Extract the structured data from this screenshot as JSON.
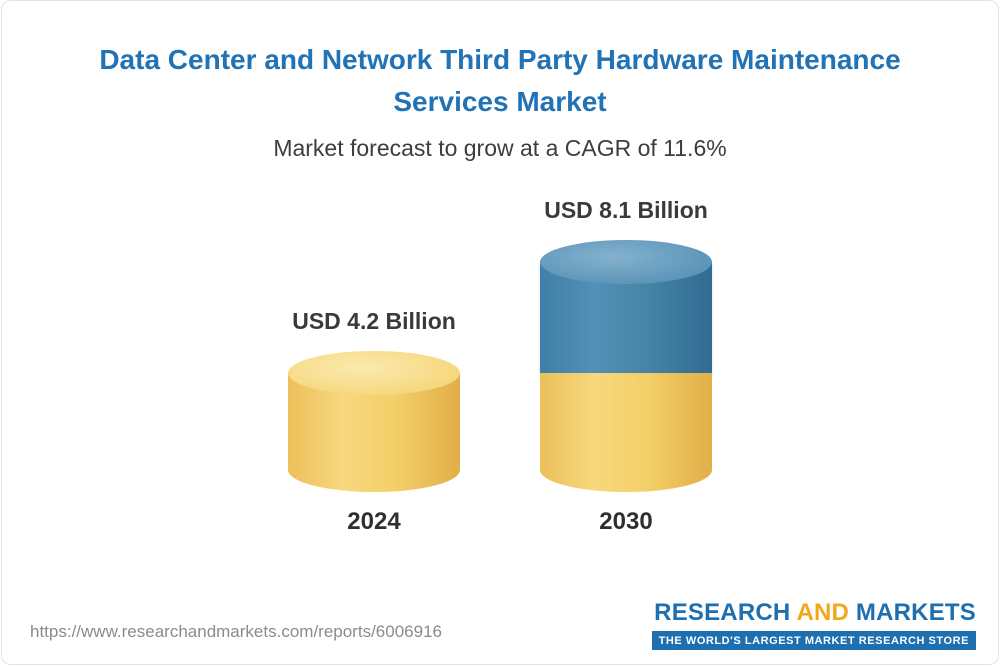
{
  "header": {
    "title_lines": [
      "Data Center and Network Third Party Hardware Maintenance",
      "Services Market"
    ],
    "subtitle": "Market forecast to grow at a CAGR of 11.6%"
  },
  "chart_data": {
    "type": "bar",
    "subtype": "3d-cylinder",
    "title": "Data Center and Network Third Party Hardware Maintenance Services Market",
    "subtitle": "Market forecast to grow at a CAGR of 11.6%",
    "cagr": "11.6%",
    "unit": "USD Billion",
    "categories": [
      "2024",
      "2030"
    ],
    "values": [
      4.2,
      8.1
    ],
    "value_labels": [
      "USD 4.2 Billion",
      "USD 8.1 Billion"
    ],
    "grid": false,
    "axes_visible": false,
    "legend": "none",
    "colors": {
      "base": "#F2CB5F",
      "growth": "#3C7CA8"
    },
    "bars": [
      {
        "category": "2024",
        "label": "USD 4.2 Billion",
        "total": 4.2,
        "segments": [
          {
            "name": "base",
            "value": 4.2,
            "color": "#F2CB5F"
          }
        ]
      },
      {
        "category": "2030",
        "label": "USD 8.1 Billion",
        "total": 8.1,
        "segments": [
          {
            "name": "base",
            "value": 4.2,
            "color": "#F2CB5F"
          },
          {
            "name": "growth",
            "value": 3.9,
            "color": "#3C7CA8"
          }
        ]
      }
    ]
  },
  "footer": {
    "url": "https://www.researchandmarkets.com/reports/6006916"
  },
  "logo": {
    "word1": "RESEARCH",
    "word2": "AND",
    "word3": "MARKETS",
    "tagline": "THE WORLD'S LARGEST MARKET RESEARCH STORE"
  }
}
